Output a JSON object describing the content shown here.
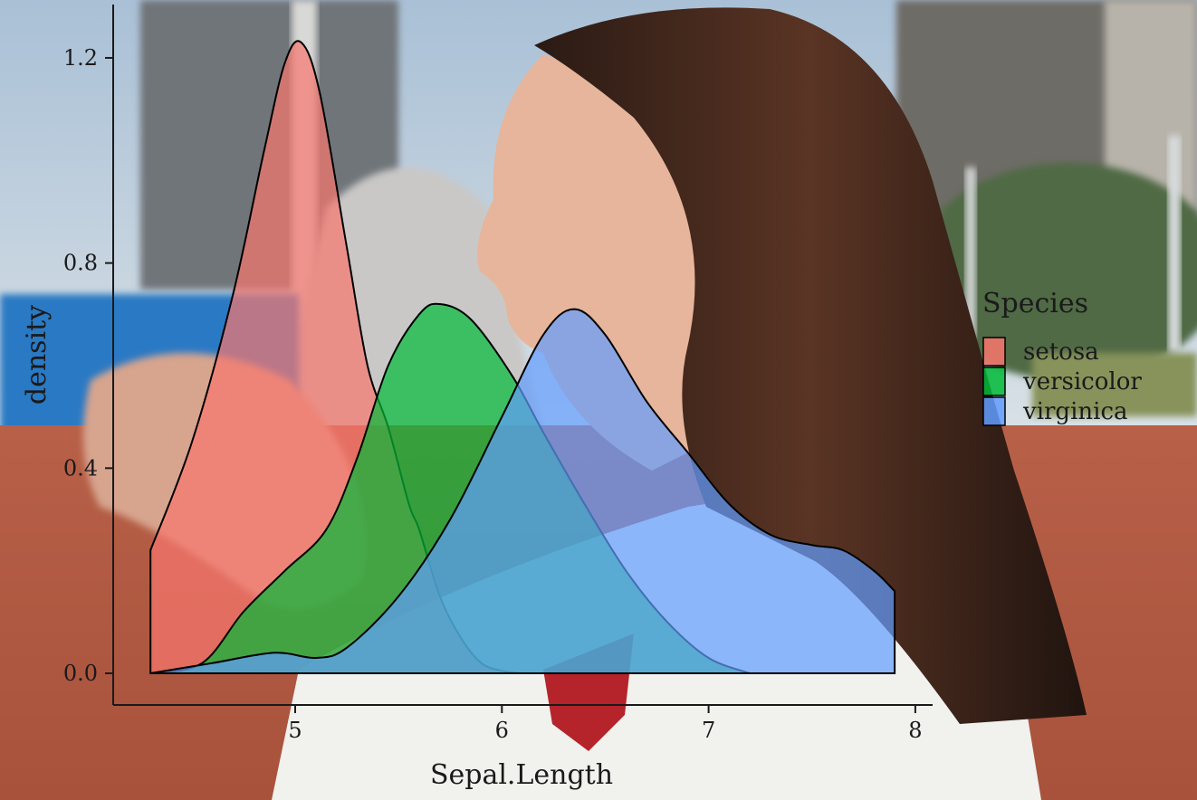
{
  "chart_data": {
    "type": "area",
    "subtype": "density",
    "title": "",
    "xlabel": "Sepal.Length",
    "ylabel": "density",
    "xlim": [
      4.3,
      7.9
    ],
    "ylim": [
      0,
      1.27
    ],
    "x_ticks": [
      "5",
      "6",
      "7",
      "8"
    ],
    "y_ticks": [
      "0.0",
      "0.4",
      "0.8",
      "1.2"
    ],
    "grid": false,
    "legend": {
      "title": "Species",
      "position": "right",
      "entries": [
        "setosa",
        "versicolor",
        "virginica"
      ]
    },
    "series": [
      {
        "name": "setosa",
        "color": "#F8766D",
        "points": [
          [
            4.3,
            0.24
          ],
          [
            4.5,
            0.45
          ],
          [
            4.7,
            0.74
          ],
          [
            4.85,
            1.02
          ],
          [
            4.95,
            1.19
          ],
          [
            5.03,
            1.23
          ],
          [
            5.12,
            1.13
          ],
          [
            5.25,
            0.83
          ],
          [
            5.35,
            0.6
          ],
          [
            5.45,
            0.48
          ],
          [
            5.55,
            0.33
          ],
          [
            5.6,
            0.28
          ],
          [
            5.7,
            0.15
          ],
          [
            5.8,
            0.07
          ],
          [
            5.9,
            0.02
          ],
          [
            6.0,
            0.005
          ],
          [
            6.1,
            0.0
          ]
        ]
      },
      {
        "name": "versicolor",
        "color": "#00BA38",
        "points": [
          [
            4.3,
            0.0
          ],
          [
            4.55,
            0.02
          ],
          [
            4.75,
            0.12
          ],
          [
            4.95,
            0.2
          ],
          [
            5.15,
            0.28
          ],
          [
            5.3,
            0.42
          ],
          [
            5.45,
            0.6
          ],
          [
            5.6,
            0.7
          ],
          [
            5.7,
            0.72
          ],
          [
            5.85,
            0.69
          ],
          [
            6.05,
            0.58
          ],
          [
            6.2,
            0.47
          ],
          [
            6.4,
            0.33
          ],
          [
            6.6,
            0.2
          ],
          [
            6.8,
            0.1
          ],
          [
            7.0,
            0.03
          ],
          [
            7.2,
            0.0
          ]
        ]
      },
      {
        "name": "virginica",
        "color": "#619CFF",
        "points": [
          [
            4.3,
            0.0
          ],
          [
            4.6,
            0.02
          ],
          [
            4.9,
            0.04
          ],
          [
            5.1,
            0.03
          ],
          [
            5.25,
            0.05
          ],
          [
            5.5,
            0.15
          ],
          [
            5.75,
            0.3
          ],
          [
            6.0,
            0.5
          ],
          [
            6.2,
            0.66
          ],
          [
            6.35,
            0.71
          ],
          [
            6.5,
            0.66
          ],
          [
            6.7,
            0.53
          ],
          [
            6.9,
            0.43
          ],
          [
            7.1,
            0.33
          ],
          [
            7.3,
            0.27
          ],
          [
            7.5,
            0.25
          ],
          [
            7.65,
            0.24
          ],
          [
            7.8,
            0.2
          ],
          [
            7.9,
            0.16
          ]
        ]
      }
    ]
  }
}
